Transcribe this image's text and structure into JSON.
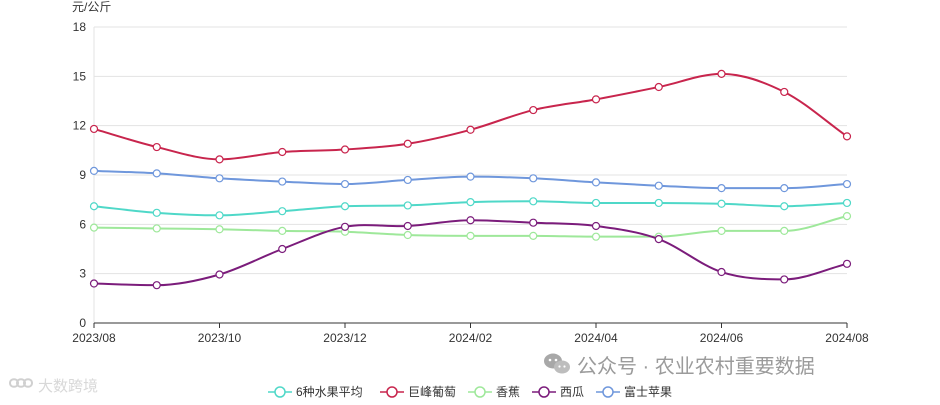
{
  "chart_data": {
    "type": "line",
    "ylabel": "元/公斤",
    "ylim": [
      0,
      18
    ],
    "yticks": [
      "0",
      "3",
      "6",
      "9",
      "12",
      "15",
      "18"
    ],
    "categories": [
      "2023/08",
      "2023/09",
      "2023/10",
      "2023/11",
      "2023/12",
      "2024/01",
      "2024/02",
      "2024/03",
      "2024/04",
      "2024/05",
      "2024/06",
      "2024/07",
      "2024/08"
    ],
    "xtick_labels": [
      "2023/08",
      "2023/10",
      "2023/12",
      "2024/02",
      "2024/04",
      "2024/06",
      "2024/08"
    ],
    "grid": true,
    "legend_position": "bottom",
    "smooth": true,
    "series": [
      {
        "name": "6种水果平均",
        "color": "#4fd8c8",
        "values": [
          7.1,
          6.7,
          6.55,
          6.8,
          7.1,
          7.15,
          7.35,
          7.4,
          7.3,
          7.3,
          7.25,
          7.1,
          7.3
        ]
      },
      {
        "name": "巨峰葡萄",
        "color": "#c8254d",
        "values": [
          11.8,
          10.7,
          9.95,
          10.4,
          10.55,
          10.9,
          11.75,
          12.95,
          13.6,
          14.35,
          15.15,
          14.05,
          11.35
        ]
      },
      {
        "name": "香蕉",
        "color": "#9ee89a",
        "values": [
          5.8,
          5.75,
          5.7,
          5.6,
          5.55,
          5.35,
          5.3,
          5.3,
          5.25,
          5.25,
          5.6,
          5.6,
          6.5
        ]
      },
      {
        "name": "西瓜",
        "color": "#7b1c7b",
        "values": [
          2.4,
          2.3,
          2.95,
          4.5,
          5.85,
          5.9,
          6.25,
          6.1,
          5.9,
          5.1,
          3.1,
          2.65,
          3.6
        ]
      },
      {
        "name": "富士苹果",
        "color": "#6f97dc",
        "values": [
          9.25,
          9.1,
          8.8,
          8.6,
          8.45,
          8.7,
          8.9,
          8.8,
          8.55,
          8.35,
          8.2,
          8.2,
          8.45
        ]
      }
    ]
  },
  "watermarks": {
    "right": "公众号 · 农业农村重要数据",
    "left": "大数跨境"
  }
}
